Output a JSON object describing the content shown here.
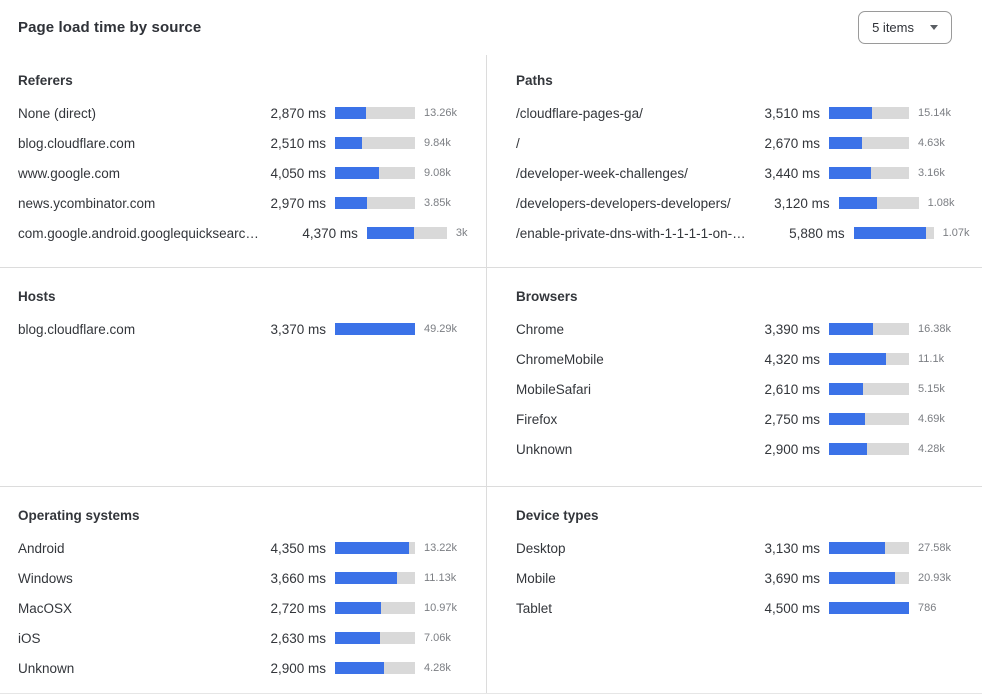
{
  "widget": {
    "title": "Page load time by source",
    "items_dropdown": {
      "value": "5 items"
    }
  },
  "colors": {
    "bar_fill": "#3B72E8",
    "bar_track": "#D9D9D9",
    "divider": "#DCDCDC",
    "text_primary": "#33363B",
    "text_count": "#7B7E83"
  },
  "panels": [
    {
      "title": "Referers",
      "bar_scale_ms": 7350,
      "rows": [
        {
          "label": "None (direct)",
          "ms": 2870,
          "ms_label": "2,870 ms",
          "count": "13.26k"
        },
        {
          "label": "blog.cloudflare.com",
          "ms": 2510,
          "ms_label": "2,510 ms",
          "count": "9.84k"
        },
        {
          "label": "www.google.com",
          "ms": 4050,
          "ms_label": "4,050 ms",
          "count": "9.08k"
        },
        {
          "label": "news.ycombinator.com",
          "ms": 2970,
          "ms_label": "2,970 ms",
          "count": "3.85k"
        },
        {
          "label": "com.google.android.googlequicksearc…",
          "ms": 4370,
          "ms_label": "4,370 ms",
          "count": "3k"
        }
      ]
    },
    {
      "title": "Paths",
      "bar_scale_ms": 6500,
      "rows": [
        {
          "label": "/cloudflare-pages-ga/",
          "ms": 3510,
          "ms_label": "3,510 ms",
          "count": "15.14k"
        },
        {
          "label": "/",
          "ms": 2670,
          "ms_label": "2,670 ms",
          "count": "4.63k"
        },
        {
          "label": "/developer-week-challenges/",
          "ms": 3440,
          "ms_label": "3,440 ms",
          "count": "3.16k"
        },
        {
          "label": "/developers-developers-developers/",
          "ms": 3120,
          "ms_label": "3,120 ms",
          "count": "1.08k"
        },
        {
          "label": "/enable-private-dns-with-1-1-1-1-on-…",
          "ms": 5880,
          "ms_label": "5,880 ms",
          "count": "1.07k"
        }
      ]
    },
    {
      "title": "Hosts",
      "bar_scale_ms": 3370,
      "rows": [
        {
          "label": "blog.cloudflare.com",
          "ms": 3370,
          "ms_label": "3,370 ms",
          "count": "49.29k"
        }
      ]
    },
    {
      "title": "Browsers",
      "bar_scale_ms": 6100,
      "rows": [
        {
          "label": "Chrome",
          "ms": 3390,
          "ms_label": "3,390 ms",
          "count": "16.38k"
        },
        {
          "label": "ChromeMobile",
          "ms": 4320,
          "ms_label": "4,320 ms",
          "count": "11.1k"
        },
        {
          "label": "MobileSafari",
          "ms": 2610,
          "ms_label": "2,610 ms",
          "count": "5.15k"
        },
        {
          "label": "Firefox",
          "ms": 2750,
          "ms_label": "2,750 ms",
          "count": "4.69k"
        },
        {
          "label": "Unknown",
          "ms": 2900,
          "ms_label": "2,900 ms",
          "count": "4.28k"
        }
      ]
    },
    {
      "title": "Operating systems",
      "bar_scale_ms": 4700,
      "rows": [
        {
          "label": "Android",
          "ms": 4350,
          "ms_label": "4,350 ms",
          "count": "13.22k"
        },
        {
          "label": "Windows",
          "ms": 3660,
          "ms_label": "3,660 ms",
          "count": "11.13k"
        },
        {
          "label": "MacOSX",
          "ms": 2720,
          "ms_label": "2,720 ms",
          "count": "10.97k"
        },
        {
          "label": "iOS",
          "ms": 2630,
          "ms_label": "2,630 ms",
          "count": "7.06k"
        },
        {
          "label": "Unknown",
          "ms": 2900,
          "ms_label": "2,900 ms",
          "count": "4.28k"
        }
      ]
    },
    {
      "title": "Device types",
      "bar_scale_ms": 4500,
      "rows": [
        {
          "label": "Desktop",
          "ms": 3130,
          "ms_label": "3,130 ms",
          "count": "27.58k"
        },
        {
          "label": "Mobile",
          "ms": 3690,
          "ms_label": "3,690 ms",
          "count": "20.93k"
        },
        {
          "label": "Tablet",
          "ms": 4500,
          "ms_label": "4,500 ms",
          "count": "786"
        }
      ]
    }
  ]
}
